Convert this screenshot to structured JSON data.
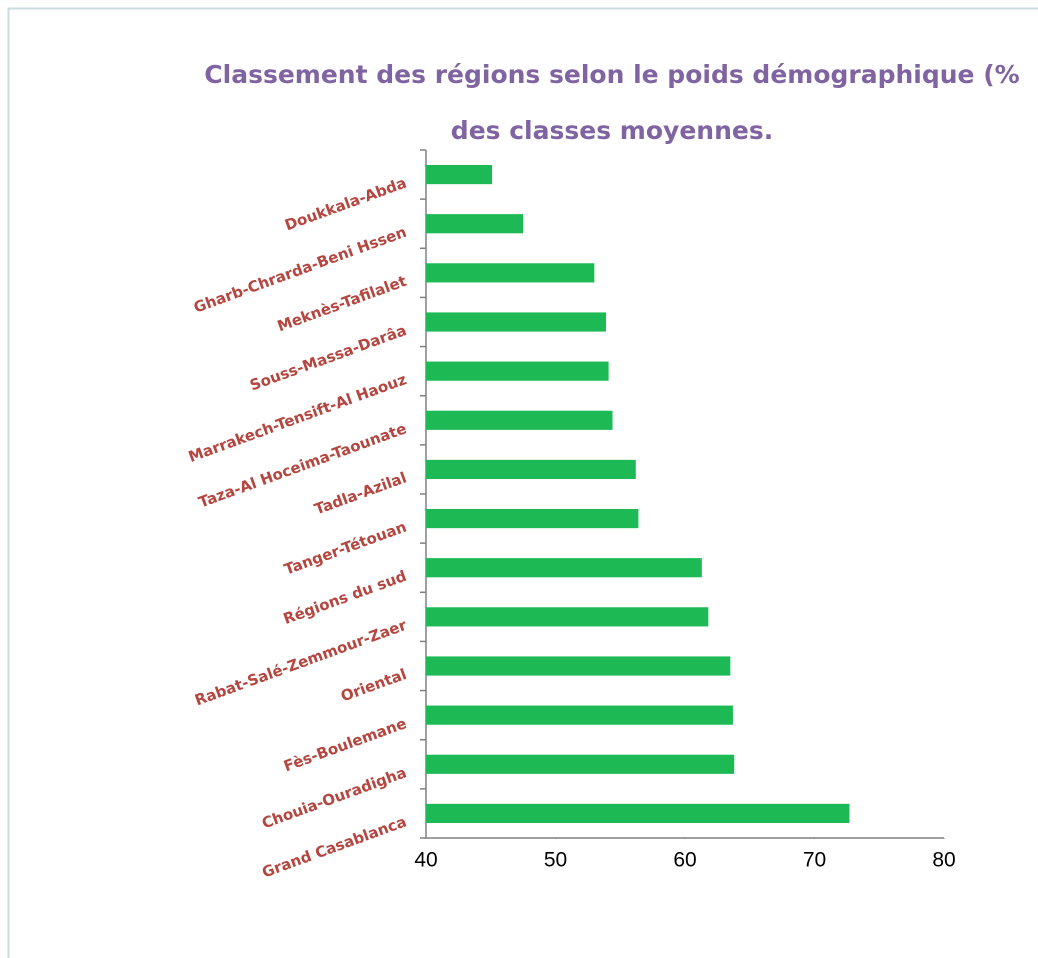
{
  "chart_data": {
    "type": "barh",
    "title_lines": [
      "Classement des régions selon le poids démographique (%",
      "des classes moyennes."
    ],
    "categories": [
      "Doukkala-Abda",
      "Gharb-Chrarda-Beni Hssen",
      "Meknès-Tafilalet",
      "Souss-Massa-Darâa",
      "Marrakech-Tensift-Al Haouz",
      "Taza-Al Hoceima-Taounate",
      "Tadla-Azilal",
      "Tanger-Tétouan",
      "Régions du sud",
      "Rabat-Salé-Zemmour-Zaer",
      "Oriental",
      "Fès-Boulemane",
      "Chouia-Ouradigha",
      "Grand Casablanca"
    ],
    "values": [
      45.1,
      47.5,
      53.0,
      53.9,
      54.1,
      54.4,
      56.2,
      56.4,
      61.3,
      61.8,
      63.5,
      63.7,
      63.8,
      72.7
    ],
    "color": "#1db954",
    "xlim": [
      40,
      80
    ],
    "xticks": [
      40,
      50,
      60,
      70,
      80
    ],
    "grid": false
  }
}
